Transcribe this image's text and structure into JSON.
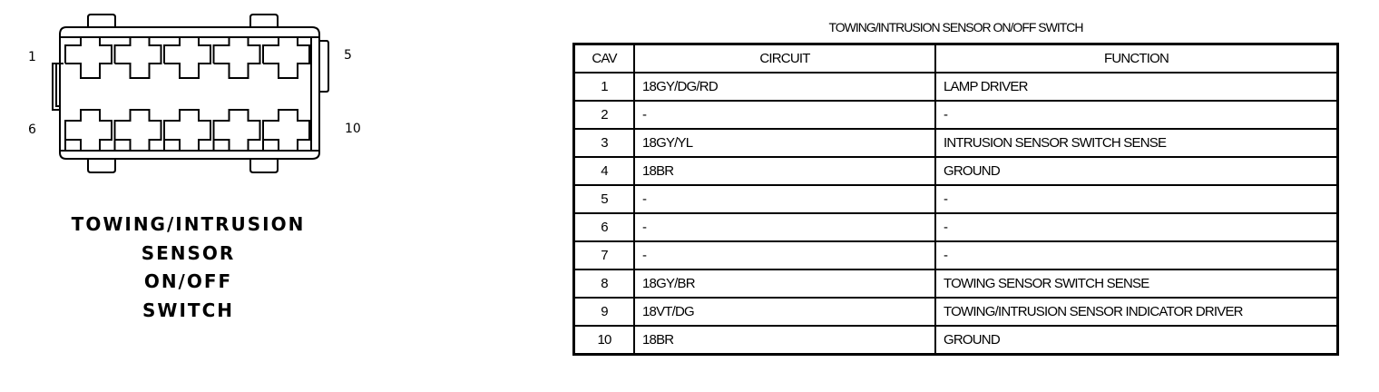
{
  "connector": {
    "pin_labels": [
      "1",
      "5",
      "6",
      "10"
    ],
    "caption": [
      "TOWING/INTRUSION",
      "SENSOR",
      "ON/OFF",
      "SWITCH"
    ]
  },
  "table": {
    "title": "TOWING/INTRUSION SENSOR ON/OFF SWITCH",
    "headers": [
      "CAV",
      "CIRCUIT",
      "FUNCTION"
    ],
    "rows": [
      [
        "1",
        "18GY/DG/RD",
        "LAMP DRIVER"
      ],
      [
        "2",
        "-",
        "-"
      ],
      [
        "3",
        "18GY/YL",
        "INTRUSION SENSOR SWITCH SENSE"
      ],
      [
        "4",
        "18BR",
        "GROUND"
      ],
      [
        "5",
        "-",
        "-"
      ],
      [
        "6",
        "-",
        "-"
      ],
      [
        "7",
        "-",
        "-"
      ],
      [
        "8",
        "18GY/BR",
        "TOWING SENSOR SWITCH SENSE"
      ],
      [
        "9",
        "18VT/DG",
        "TOWING/INTRUSION SENSOR INDICATOR DRIVER"
      ],
      [
        "10",
        "18BR",
        "GROUND"
      ]
    ]
  }
}
